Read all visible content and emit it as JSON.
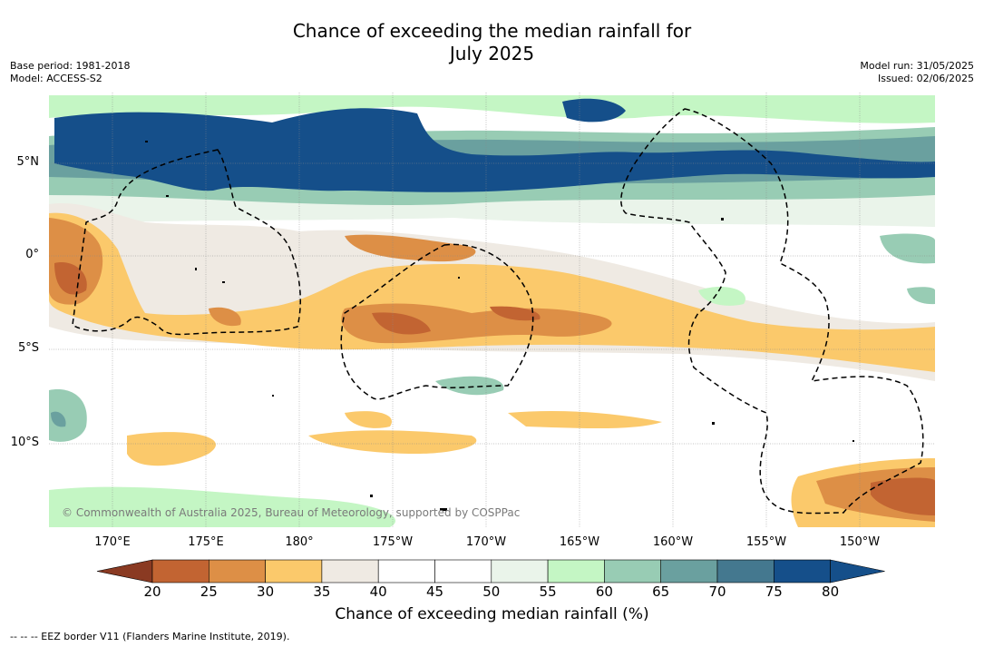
{
  "title_line1": "Chance of exceeding the median rainfall for",
  "title_line2": "July 2025",
  "meta_left": {
    "base_period": "Base period: 1981-2018",
    "model": "Model: ACCESS-S2"
  },
  "meta_right": {
    "model_run": "Model run: 31/05/2025",
    "issued": "Issued: 02/06/2025"
  },
  "lat_labels": [
    "5°N",
    "0°",
    "5°S",
    "10°S"
  ],
  "lon_labels": [
    "170°E",
    "175°E",
    "180°",
    "175°W",
    "170°W",
    "165°W",
    "160°W",
    "155°W",
    "150°W"
  ],
  "copyright": "© Commonwealth of Australia 2025, Bureau of Meteorology, supported by COSPPac",
  "colorbar": {
    "ticks": [
      "20",
      "25",
      "30",
      "35",
      "40",
      "45",
      "50",
      "55",
      "60",
      "65",
      "70",
      "75",
      "80"
    ],
    "colors": [
      "#a5492a",
      "#c26432",
      "#dd8f46",
      "#fbc96b",
      "#efeae3",
      "#ffffff",
      "#ffffff",
      "#eaf4ea",
      "#c4f6c4",
      "#98ccb4",
      "#6aa09f",
      "#44788f",
      "#154f8a"
    ],
    "label": "Chance of exceeding median rainfall (%)"
  },
  "footer": "--  --  -- EEZ border V11 (Flanders Marine Institute, 2019)."
}
